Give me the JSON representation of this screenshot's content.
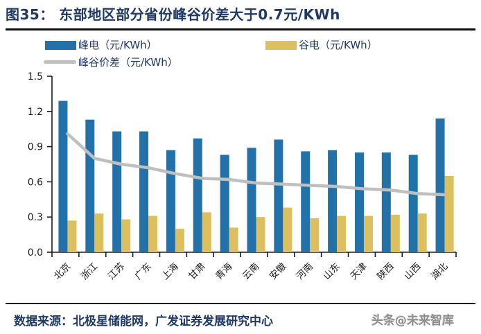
{
  "title": "图35：  东部地区部分省份峰谷价差大于0.7元/KWh",
  "legend": {
    "peak_label": "峰电（元/KWh）",
    "valley_label": "谷电（元/KWh）",
    "diff_label": "峰谷价差（元/KWh）"
  },
  "colors": {
    "peak_bar": "#2272A9",
    "valley_bar": "#DCC05F",
    "diff_line": "#BFBFBF",
    "title_text": "#1F3864",
    "axis": "#1a1a1a",
    "watermark_text": "#8C8C8C"
  },
  "footer": {
    "source": "数据来源：北极星储能网，广发证券发展研究中心",
    "watermark": "头条@未来智库"
  },
  "chart_data": {
    "type": "bar",
    "subtype": "grouped-bars-with-line",
    "categories": [
      "北京",
      "浙江",
      "江苏",
      "广东",
      "上海",
      "甘肃",
      "青海",
      "云南",
      "安徽",
      "河南",
      "山东",
      "天津",
      "陕西",
      "山西",
      "湖北"
    ],
    "series": [
      {
        "name": "峰电（元/KWh）",
        "type": "bar",
        "color": "#2272A9",
        "values": [
          1.29,
          1.13,
          1.03,
          1.03,
          0.87,
          0.97,
          0.83,
          0.89,
          0.96,
          0.86,
          0.87,
          0.85,
          0.85,
          0.83,
          1.14
        ]
      },
      {
        "name": "谷电（元/KWh）",
        "type": "bar",
        "color": "#DCC05F",
        "values": [
          0.27,
          0.33,
          0.28,
          0.31,
          0.2,
          0.34,
          0.21,
          0.3,
          0.38,
          0.29,
          0.31,
          0.31,
          0.32,
          0.33,
          0.65
        ]
      },
      {
        "name": "峰谷价差（元/KWh）",
        "type": "line",
        "color": "#BFBFBF",
        "values": [
          1.01,
          0.8,
          0.75,
          0.72,
          0.67,
          0.63,
          0.62,
          0.59,
          0.58,
          0.57,
          0.56,
          0.54,
          0.53,
          0.5,
          0.49
        ]
      }
    ],
    "title": "东部地区部分省份峰谷价差大于0.7元/KWh",
    "xlabel": "",
    "ylabel": "",
    "ylim": [
      0,
      1.5
    ],
    "yticks": [
      0.0,
      0.3,
      0.6,
      0.9,
      1.2,
      1.5
    ],
    "grid": false,
    "legend_position": "top"
  }
}
